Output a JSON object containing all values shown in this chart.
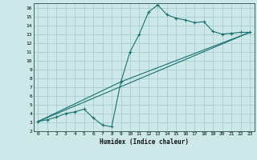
{
  "xlabel": "Humidex (Indice chaleur)",
  "bg_color": "#cce8e8",
  "grid_color": "#aacccc",
  "line_color": "#1a7070",
  "xlim": [
    -0.5,
    23.5
  ],
  "ylim": [
    2,
    16.5
  ],
  "xticks": [
    0,
    1,
    2,
    3,
    4,
    5,
    6,
    7,
    8,
    9,
    10,
    11,
    12,
    13,
    14,
    15,
    16,
    17,
    18,
    19,
    20,
    21,
    22,
    23
  ],
  "yticks": [
    2,
    3,
    4,
    5,
    6,
    7,
    8,
    9,
    10,
    11,
    12,
    13,
    14,
    15,
    16
  ],
  "line1_x": [
    0,
    1,
    2,
    3,
    4,
    5,
    6,
    7,
    8,
    9,
    10,
    11,
    12,
    13,
    14,
    15,
    16,
    17,
    18,
    19,
    20,
    21,
    22,
    23
  ],
  "line1_y": [
    3.1,
    3.3,
    3.6,
    4.0,
    4.2,
    4.5,
    3.5,
    2.7,
    2.5,
    7.6,
    11.0,
    13.0,
    15.5,
    16.3,
    15.2,
    14.8,
    14.6,
    14.3,
    14.4,
    13.3,
    13.0,
    13.1,
    13.2,
    13.2
  ],
  "line2_x": [
    0,
    23
  ],
  "line2_y": [
    3.1,
    13.2
  ],
  "line3_x": [
    0,
    9,
    23
  ],
  "line3_y": [
    3.1,
    7.6,
    13.2
  ]
}
